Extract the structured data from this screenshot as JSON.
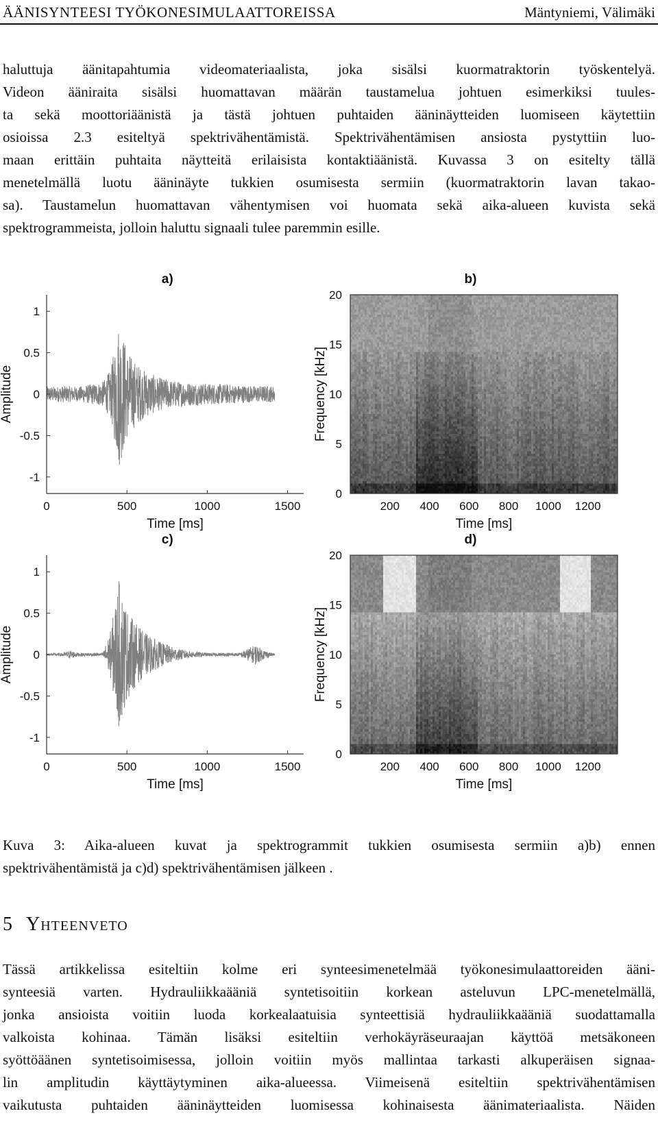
{
  "header": {
    "title": "ÄÄNISYNTEESI TYÖKONESIMULAATTOREISSA",
    "authors": "Mäntyniemi, Välimäki"
  },
  "body_lines": [
    "haluttuja äänitapahtumia videomateriaalista, joka sisälsi kuormatraktorin työskentelyä.",
    "Videon ääniraita sisälsi huomattavan määrän taustamelua johtuen esimerkiksi tuules-",
    "ta sekä moottoriäänistä ja tästä johtuen puhtaiden ääninäytteiden luomiseen käytettiin",
    "osioissa 2.3 esiteltyä spektrivähentämistä. Spektrivähentämisen ansiosta pystyttiin luo-",
    "maan erittäin puhtaita näytteitä erilaisista kontaktiäänistä. Kuvassa 3 on esitelty tällä",
    "menetelmällä luotu ääninäyte tukkien osumisesta sermiin (kuormatraktorin lavan takao-",
    "sa). Taustamelun huomattavan vähentymisen voi huomata sekä aika-alueen kuvista sekä",
    "spektrogrammeista, jolloin haluttu signaali tulee paremmin esille."
  ],
  "chart_data": [
    {
      "type": "line",
      "panel": "a)",
      "xlabel": "Time [ms]",
      "ylabel": "Amplitude",
      "xticks": [
        "0",
        "500",
        "1000",
        "1500"
      ],
      "yticks": [
        "1",
        "0.5",
        "0",
        "-0.5",
        "-1"
      ],
      "xlim": [
        0,
        1600
      ],
      "ylim": [
        -1.2,
        1.2
      ],
      "series": [
        {
          "color": "#808080",
          "envelope": {
            "t": [
              0,
              50,
              100,
              200,
              350,
              400,
              450,
              480,
              500,
              540,
              600,
              700,
              800,
              900,
              1000,
              1100,
              1200,
              1300,
              1400,
              1420
            ],
            "amp": [
              0.1,
              0.09,
              0.1,
              0.09,
              0.15,
              0.3,
              0.9,
              0.7,
              0.55,
              0.42,
              0.3,
              0.2,
              0.16,
              0.14,
              0.13,
              0.12,
              0.11,
              0.1,
              0.1,
              0.1
            ]
          }
        }
      ]
    },
    {
      "type": "heatmap",
      "panel": "b)",
      "xlabel": "Time [ms]",
      "ylabel": "Frequency [kHz]",
      "xticks": [
        "200",
        "400",
        "600",
        "800",
        "1000",
        "1200"
      ],
      "yticks": [
        "20",
        "15",
        "10",
        "5",
        "0"
      ],
      "xlim": [
        0,
        1350
      ],
      "ylim": [
        0,
        20
      ],
      "colormap": "gray"
    },
    {
      "type": "line",
      "panel": "c)",
      "xlabel": "Time [ms]",
      "ylabel": "Amplitude",
      "xticks": [
        "0",
        "500",
        "1000",
        "1500"
      ],
      "yticks": [
        "1",
        "0.5",
        "0",
        "-0.5",
        "-1"
      ],
      "xlim": [
        0,
        1600
      ],
      "ylim": [
        -1.2,
        1.2
      ],
      "series": [
        {
          "color": "#808080",
          "envelope": {
            "t": [
              0,
              100,
              150,
              200,
              350,
              400,
              450,
              480,
              500,
              540,
              600,
              700,
              800,
              900,
              1000,
              1100,
              1200,
              1300,
              1350,
              1400,
              1420
            ],
            "amp": [
              0.01,
              0.02,
              0.05,
              0.02,
              0.02,
              0.3,
              0.9,
              0.7,
              0.55,
              0.42,
              0.28,
              0.16,
              0.08,
              0.04,
              0.02,
              0.02,
              0.02,
              0.12,
              0.06,
              0.02,
              0.01
            ]
          }
        }
      ]
    },
    {
      "type": "heatmap",
      "panel": "d)",
      "xlabel": "Time [ms]",
      "ylabel": "Frequency [kHz]",
      "xticks": [
        "200",
        "400",
        "600",
        "800",
        "1000",
        "1200"
      ],
      "yticks": [
        "20",
        "15",
        "10",
        "5",
        "0"
      ],
      "xlim": [
        0,
        1350
      ],
      "ylim": [
        0,
        20
      ],
      "colormap": "gray"
    }
  ],
  "caption": {
    "line1": "Kuva 3: Aika-alueen kuvat ja spektrogrammit tukkien osumisesta sermiin a)b) ennen",
    "line2": "spektrivähentämistä ja c)d) spektrivähentämisen jälkeen ."
  },
  "section": {
    "number": "5",
    "title": "Yhteenveto"
  },
  "conclusion_lines": [
    "Tässä artikkelissa esiteltiin kolme eri synteesimenetelmää työkonesimulaattoreiden ääni-",
    "synteesiä varten. Hydrauliikkaääniä syntetisoitiin korkean asteluvun LPC-menetelmällä,",
    "jonka ansioista voitiin luoda korkealaatuisia synteettisiä hydrauliikkaääniä suodattamalla",
    "valkoista kohinaa. Tämän lisäksi esiteltiin verhokäyräseuraajan käyttöä metsäkoneen",
    "syöttöäänen syntetisoimisessa, jolloin voitiin myös mallintaa tarkasti alkuperäisen signaa-",
    "lin amplitudin käyttäytyminen aika-alueessa. Viimeisenä esiteltiin spektrivähentämisen",
    "vaikutusta puhtaiden ääninäytteiden luomisessa kohinaisesta äänimateriaalista. Näiden"
  ]
}
